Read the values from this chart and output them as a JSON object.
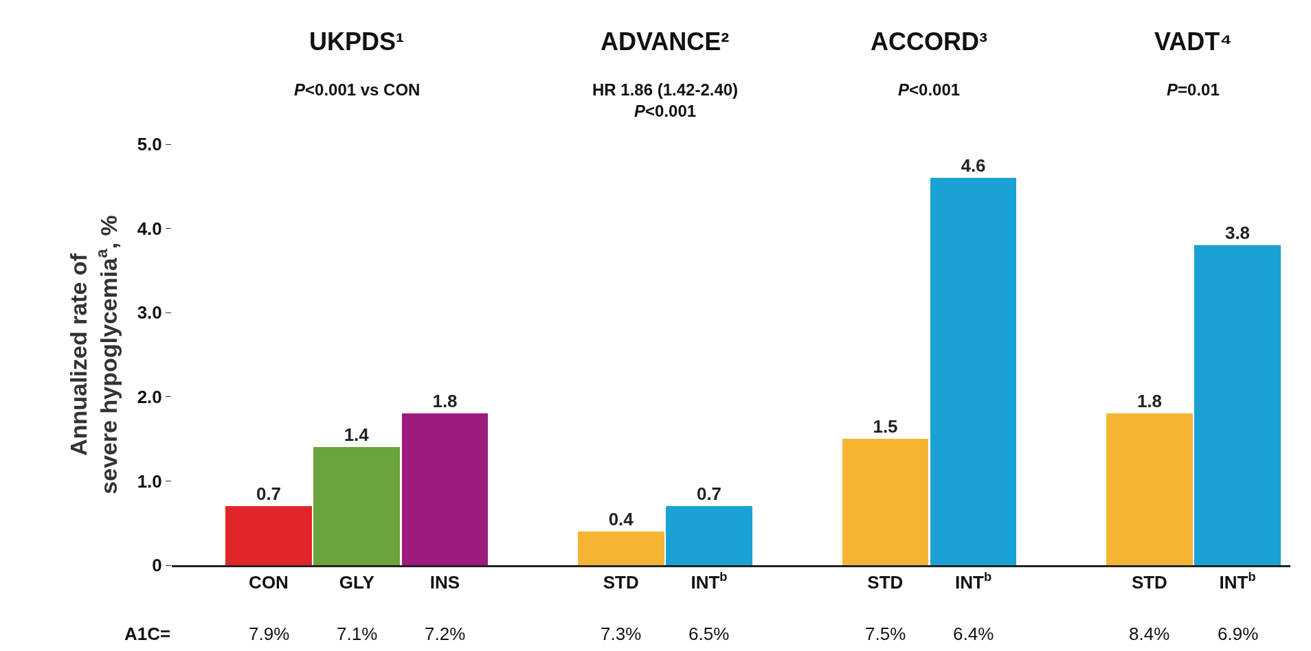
{
  "chart_data": {
    "type": "bar",
    "ylabel": "Annualized rate of\nsevere hypoglycemia$^{a}$, %",
    "categories": [
      "CON",
      "GLY",
      "INS",
      null,
      "STD",
      "INT$^{b}$",
      null,
      "STD",
      "INT$^{b}$",
      null,
      "STD",
      "INT$^{b}$"
    ],
    "values": [
      0.7,
      1.4,
      1.8,
      null,
      0.4,
      0.7,
      null,
      1.5,
      4.6,
      null,
      1.8,
      3.8
    ],
    "colors": [
      "#e0262b",
      "#6aa43a",
      "#9e1a7c",
      null,
      "#f5b534",
      "#1ba2d4",
      null,
      "#f5b534",
      "#1ba2d4",
      null,
      "#f5b534",
      "#1ba2d4"
    ],
    "data_labels": true,
    "ylim": [
      0,
      5.0
    ],
    "yticks": [
      0,
      {
        "value": 1,
        "label": "1.0"
      },
      {
        "value": 2,
        "label": "2.0"
      },
      {
        "value": 3,
        "label": "3.0"
      },
      {
        "value": 4,
        "label": "4.0"
      },
      {
        "value": 5,
        "label": "5.0"
      }
    ],
    "annotations": [
      "UKPDS¹",
      "ADVANCE²",
      "ACCORD³",
      "VADT⁴",
      "P<0.001 vs CON",
      "HR 1.86 (1.42-2.40)\nP<0.001",
      "P<0.001",
      "P=0.01",
      "A1C=",
      "7.9%",
      "7.1%",
      "7.2%",
      "7.3%",
      "6.5%",
      "7.5%",
      "6.4%",
      "8.4%",
      "6.9%"
    ]
  }
}
